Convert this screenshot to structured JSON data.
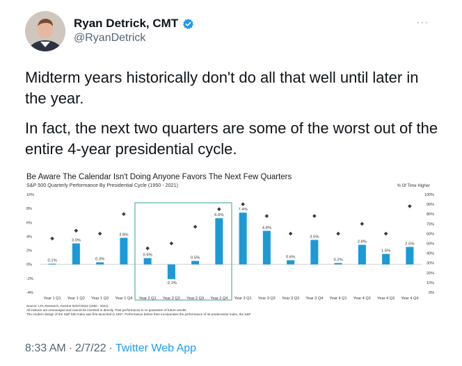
{
  "tweet": {
    "author_name": "Ryan Detrick, CMT",
    "author_handle": "@RyanDetrick",
    "more_label": "···",
    "paragraphs": [
      "Midterm years historically don't do all that well until later in the year.",
      "In fact, the next two quarters are some of the worst out of the entire 4-year presidential cycle."
    ],
    "time": "8:33 AM",
    "date": "2/7/22",
    "separator": "·",
    "app": "Twitter Web App"
  },
  "colors": {
    "accent": "#1d9bf0",
    "bar": "#1b9ad8",
    "diamond": "#3a3a3a",
    "highlight": "#6fbf9f"
  },
  "chart_data": {
    "type": "bar",
    "title": "Be Aware The Calendar Isn't Doing Anyone Favors The Next Few Quarters",
    "subtitle": "S&P 500 Quarterly Performance By Presidential Cycle (1950 - 2021)",
    "right_axis_label": "% Of Time Higher",
    "categories": [
      "Year 1 Q1",
      "Year 1 Q2",
      "Year 1 Q3",
      "Year 1 Q4",
      "Year 2 Q1",
      "Year 2 Q2",
      "Year 2 Q3",
      "Year 2 Q4",
      "Year 3 Q1",
      "Year 3 Q2",
      "Year 3 Q3",
      "Year 3 Q4",
      "Year 4 Q1",
      "Year 4 Q2",
      "Year 4 Q3",
      "Year 4 Q4"
    ],
    "values": [
      0.1,
      3.0,
      0.3,
      3.8,
      0.9,
      -2.1,
      0.5,
      6.6,
      7.4,
      4.8,
      0.6,
      3.5,
      0.2,
      2.8,
      1.5,
      2.5
    ],
    "value_labels": [
      "0.1%",
      "3.0%",
      "0.3%",
      "3.8%",
      "0.9%",
      "-2.1%",
      "0.5%",
      "6.6%",
      "7.4%",
      "4.8%",
      "0.6%",
      "3.5%",
      "0.2%",
      "2.8%",
      "1.5%",
      "2.5%"
    ],
    "pct_higher": [
      55,
      63,
      60,
      80,
      45,
      50,
      67,
      85,
      90,
      78,
      60,
      78,
      60,
      70,
      60,
      88
    ],
    "ylim": [
      -4,
      10
    ],
    "yticks": [
      "-4%",
      "-2%",
      "0%",
      "2%",
      "4%",
      "6%",
      "8%",
      "10%"
    ],
    "y2lim": [
      0,
      100
    ],
    "y2ticks": [
      "0%",
      "10%",
      "20%",
      "30%",
      "40%",
      "50%",
      "60%",
      "70%",
      "80%",
      "90%",
      "100%"
    ],
    "highlighted_categories": [
      "Year 2 Q1",
      "Year 2 Q2",
      "Year 2 Q3",
      "Year 2 Q4"
    ],
    "footnotes": [
      "Source: LPL Research, FactSet 02/07/2022 (1950 - 2021)",
      "All indexes are unmanaged and cannot be invested in directly. Past performance is no guarantee of future results.",
      "The modern design of the S&P 500 Index was first launched in 1957. Performance before then incorporates the performance of its  predecessor index, the S&P"
    ]
  }
}
